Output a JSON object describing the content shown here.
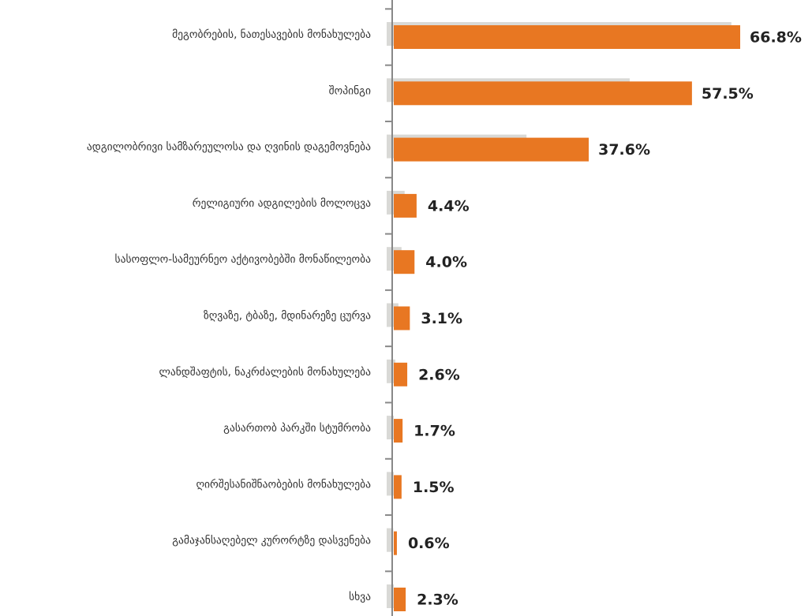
{
  "chart_data": {
    "type": "bar",
    "orientation": "horizontal",
    "categories": [
      "მეგობრების, ნათესავების  მონახულება",
      "შოპინგი",
      "ადგილობრივი სამზარეულოსა და ღვინის დაგემოვნება",
      "რელიგიური ადგილების მოლოცვა",
      "სასოფლო-სამეურნეო აქტივობებში მონაწილეობა",
      "ზღვაზე, ტბაზე, მდინარეზე ცურვა",
      "ლანდშაფტის, ნაკრძალების მონახულება",
      "გასართობ პარკში სტუმრობა",
      "ღირშესანიშნაობების მონახულება",
      "გამაჯანსაღებელ კურორტზე დასვენება",
      "სხვა"
    ],
    "series": [
      {
        "color": "#d9d9d6",
        "values": [
          65.4,
          45.8,
          25.9,
          2.4,
          1.8,
          1.2,
          0.6,
          0.3,
          0.3,
          0.2,
          0.3
        ]
      },
      {
        "color": "#e87722",
        "values": [
          66.8,
          57.5,
          37.6,
          4.4,
          4.0,
          3.1,
          2.6,
          1.7,
          1.5,
          0.6,
          2.3
        ],
        "value_labels": [
          "66.8%",
          "57.5%",
          "37.6%",
          "4.4%",
          "4.0%",
          "3.1%",
          "2.6%",
          "1.7%",
          "1.5%",
          "0.6%",
          "2.3%"
        ]
      }
    ]
  }
}
